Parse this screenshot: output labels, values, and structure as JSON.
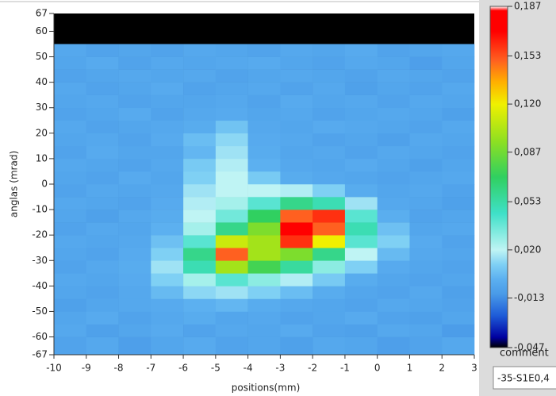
{
  "chart_data": {
    "type": "heatmap",
    "x_label": "positions(mm)",
    "y_label": "anglas (mrad)",
    "xlim": [
      -10,
      3
    ],
    "ylim": [
      -67,
      67
    ],
    "xticks": [
      -10,
      -9,
      -8,
      -7,
      -6,
      -5,
      -4,
      -3,
      -2,
      -1,
      0,
      1,
      2,
      3
    ],
    "yticks": [
      67,
      60,
      50,
      40,
      30,
      20,
      10,
      0,
      -10,
      -20,
      -30,
      -40,
      -50,
      -60,
      -67
    ],
    "x_bins": [
      -10,
      -9,
      -8,
      -7,
      -6,
      -5,
      -4,
      -3,
      -2,
      -1,
      0,
      1,
      2,
      3
    ],
    "y_bins": [
      -67,
      -60,
      -55,
      -50,
      -45,
      -40,
      -35,
      -30,
      -25,
      -20,
      -15,
      -10,
      -5,
      0,
      5,
      10,
      15,
      20,
      25,
      30,
      35,
      40,
      45,
      50,
      55
    ],
    "z": [
      [
        -0.006,
        -0.004,
        -0.008,
        -0.005,
        -0.003,
        -0.006,
        -0.005,
        -0.007,
        -0.004,
        -0.005,
        -0.008,
        -0.006,
        -0.004
      ],
      [
        -0.004,
        -0.007,
        -0.005,
        -0.003,
        -0.006,
        -0.004,
        -0.005,
        -0.003,
        -0.006,
        -0.007,
        -0.004,
        -0.005,
        -0.009
      ],
      [
        -0.005,
        -0.003,
        -0.006,
        -0.004,
        -0.002,
        -0.005,
        -0.004,
        -0.006,
        -0.005,
        -0.003,
        -0.006,
        -0.007,
        -0.005
      ],
      [
        -0.007,
        -0.005,
        -0.004,
        -0.003,
        0.0,
        0.002,
        -0.002,
        -0.004,
        -0.005,
        -0.006,
        -0.004,
        -0.005,
        -0.006
      ],
      [
        -0.005,
        -0.006,
        -0.004,
        0.003,
        0.012,
        0.015,
        0.01,
        0.004,
        -0.002,
        -0.005,
        -0.006,
        -0.004,
        -0.007
      ],
      [
        -0.004,
        -0.005,
        -0.003,
        0.01,
        0.025,
        0.04,
        0.03,
        0.018,
        0.008,
        -0.002,
        -0.005,
        -0.006,
        -0.005
      ],
      [
        -0.006,
        -0.004,
        -0.002,
        0.015,
        0.05,
        0.1,
        0.075,
        0.055,
        0.03,
        0.01,
        -0.003,
        -0.005,
        -0.006
      ],
      [
        -0.005,
        -0.006,
        -0.003,
        0.01,
        0.06,
        0.15,
        0.1,
        0.09,
        0.06,
        0.02,
        0.003,
        -0.004,
        -0.005
      ],
      [
        -0.004,
        -0.005,
        -0.004,
        0.005,
        0.04,
        0.11,
        0.1,
        0.16,
        0.12,
        0.04,
        0.01,
        -0.003,
        -0.006
      ],
      [
        -0.006,
        -0.004,
        -0.005,
        0.0,
        0.025,
        0.06,
        0.09,
        0.18,
        0.15,
        0.05,
        0.005,
        -0.005,
        -0.004
      ],
      [
        -0.005,
        -0.007,
        -0.004,
        -0.002,
        0.02,
        0.035,
        0.07,
        0.15,
        0.16,
        0.04,
        -0.001,
        -0.006,
        -0.005
      ],
      [
        -0.004,
        -0.005,
        -0.006,
        -0.003,
        0.018,
        0.025,
        0.04,
        0.06,
        0.05,
        0.015,
        -0.004,
        -0.005,
        -0.007
      ],
      [
        -0.006,
        -0.004,
        -0.005,
        -0.004,
        0.015,
        0.02,
        0.02,
        0.018,
        0.01,
        -0.002,
        -0.005,
        -0.004,
        -0.006
      ],
      [
        -0.005,
        -0.006,
        -0.003,
        -0.005,
        0.01,
        0.02,
        0.008,
        -0.002,
        -0.004,
        -0.005,
        -0.006,
        -0.005,
        -0.004
      ],
      [
        -0.004,
        -0.005,
        -0.006,
        -0.004,
        0.008,
        0.018,
        0.0,
        -0.004,
        -0.005,
        -0.003,
        -0.005,
        -0.007,
        -0.005
      ],
      [
        -0.006,
        -0.003,
        -0.005,
        -0.005,
        0.002,
        0.015,
        -0.002,
        -0.005,
        -0.004,
        -0.006,
        -0.004,
        -0.005,
        -0.006
      ],
      [
        -0.005,
        -0.004,
        -0.006,
        -0.003,
        0.004,
        0.012,
        -0.003,
        -0.004,
        -0.006,
        -0.005,
        -0.007,
        -0.004,
        -0.005
      ],
      [
        -0.004,
        -0.006,
        -0.005,
        -0.004,
        -0.002,
        0.006,
        -0.004,
        -0.005,
        -0.003,
        -0.004,
        -0.005,
        -0.006,
        -0.004
      ],
      [
        -0.006,
        -0.005,
        -0.003,
        -0.006,
        -0.004,
        -0.003,
        -0.005,
        -0.004,
        -0.006,
        -0.005,
        -0.004,
        -0.005,
        -0.007
      ],
      [
        -0.005,
        -0.004,
        -0.006,
        -0.005,
        -0.005,
        -0.004,
        -0.006,
        -0.003,
        -0.005,
        -0.004,
        -0.006,
        -0.004,
        -0.005
      ],
      [
        -0.004,
        -0.006,
        -0.005,
        -0.003,
        -0.006,
        -0.005,
        -0.004,
        -0.006,
        -0.004,
        -0.007,
        -0.005,
        -0.006,
        -0.004
      ],
      [
        -0.006,
        -0.005,
        -0.004,
        -0.005,
        -0.004,
        -0.006,
        -0.005,
        -0.004,
        -0.005,
        -0.006,
        -0.004,
        -0.005,
        -0.006
      ],
      [
        -0.005,
        -0.003,
        -0.006,
        -0.004,
        -0.005,
        -0.004,
        -0.003,
        -0.005,
        -0.006,
        -0.004,
        -0.005,
        -0.008,
        -0.005
      ],
      [
        -0.004,
        -0.006,
        -0.005,
        -0.006,
        -0.004,
        -0.005,
        -0.006,
        -0.004,
        -0.005,
        -0.003,
        -0.006,
        -0.005,
        -0.004
      ]
    ],
    "zlim": [
      -0.047,
      0.187
    ],
    "zticks": [
      {
        "value": 0.187,
        "label": "0,187"
      },
      {
        "value": 0.153,
        "label": "0,153"
      },
      {
        "value": 0.12,
        "label": "0,120"
      },
      {
        "value": 0.087,
        "label": "0,087"
      },
      {
        "value": 0.053,
        "label": "0,053"
      },
      {
        "value": 0.02,
        "label": "0,020"
      },
      {
        "value": -0.013,
        "label": "-0,013"
      },
      {
        "value": -0.047,
        "label": "-0,047"
      }
    ],
    "colorscale": [
      [
        -0.047,
        "#000000"
      ],
      [
        -0.04,
        "#0000a0"
      ],
      [
        -0.025,
        "#1e5cd8"
      ],
      [
        -0.01,
        "#4a9be8"
      ],
      [
        0.0,
        "#5cb0f0"
      ],
      [
        0.01,
        "#7fd0f4"
      ],
      [
        0.02,
        "#bff4f4"
      ],
      [
        0.045,
        "#3fe0c8"
      ],
      [
        0.07,
        "#30d060"
      ],
      [
        0.095,
        "#90e020"
      ],
      [
        0.12,
        "#f0f000"
      ],
      [
        0.135,
        "#ffb000"
      ],
      [
        0.15,
        "#ff6020"
      ],
      [
        0.17,
        "#ff0000"
      ],
      [
        0.184,
        "#ff0000"
      ],
      [
        0.187,
        "#ffffff"
      ]
    ]
  },
  "ui": {
    "comment_label": "comment",
    "comment_value": "-35-S1E0,4"
  }
}
